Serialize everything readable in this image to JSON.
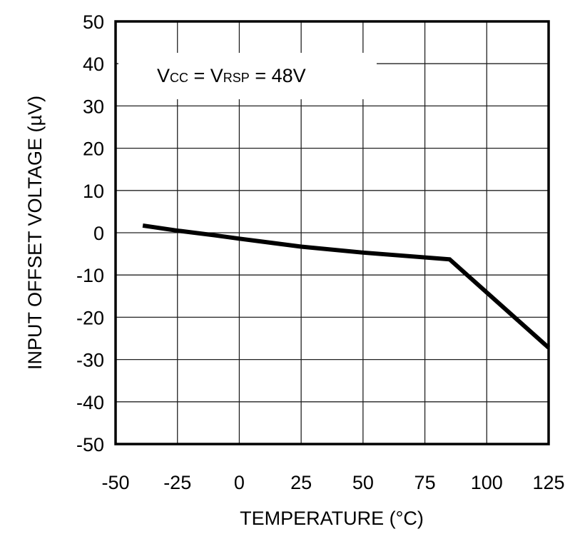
{
  "chart_data": {
    "type": "line",
    "title": "",
    "xlabel": "TEMPERATURE  (°C)",
    "ylabel": "INPUT OFFSET VOLTAGE  (µV)",
    "xlim": [
      -50,
      125
    ],
    "ylim": [
      -50,
      50
    ],
    "xticks": [
      -50,
      -25,
      0,
      25,
      50,
      75,
      100,
      125
    ],
    "yticks": [
      50,
      40,
      30,
      20,
      10,
      0,
      -10,
      -20,
      -30,
      -40,
      -50
    ],
    "grid": true,
    "annotation": {
      "v1": "V",
      "sub1": "CC",
      "eq1": " = V",
      "sub2": "RSP",
      "eq2": " = 48V"
    },
    "series": [
      {
        "color": "#000000",
        "x": [
          -39,
          -25,
          -10,
          0,
          25,
          50,
          85,
          125
        ],
        "y": [
          1.7,
          0.5,
          -0.6,
          -1.4,
          -3.3,
          -4.7,
          -6.3,
          -27.2
        ]
      }
    ]
  }
}
